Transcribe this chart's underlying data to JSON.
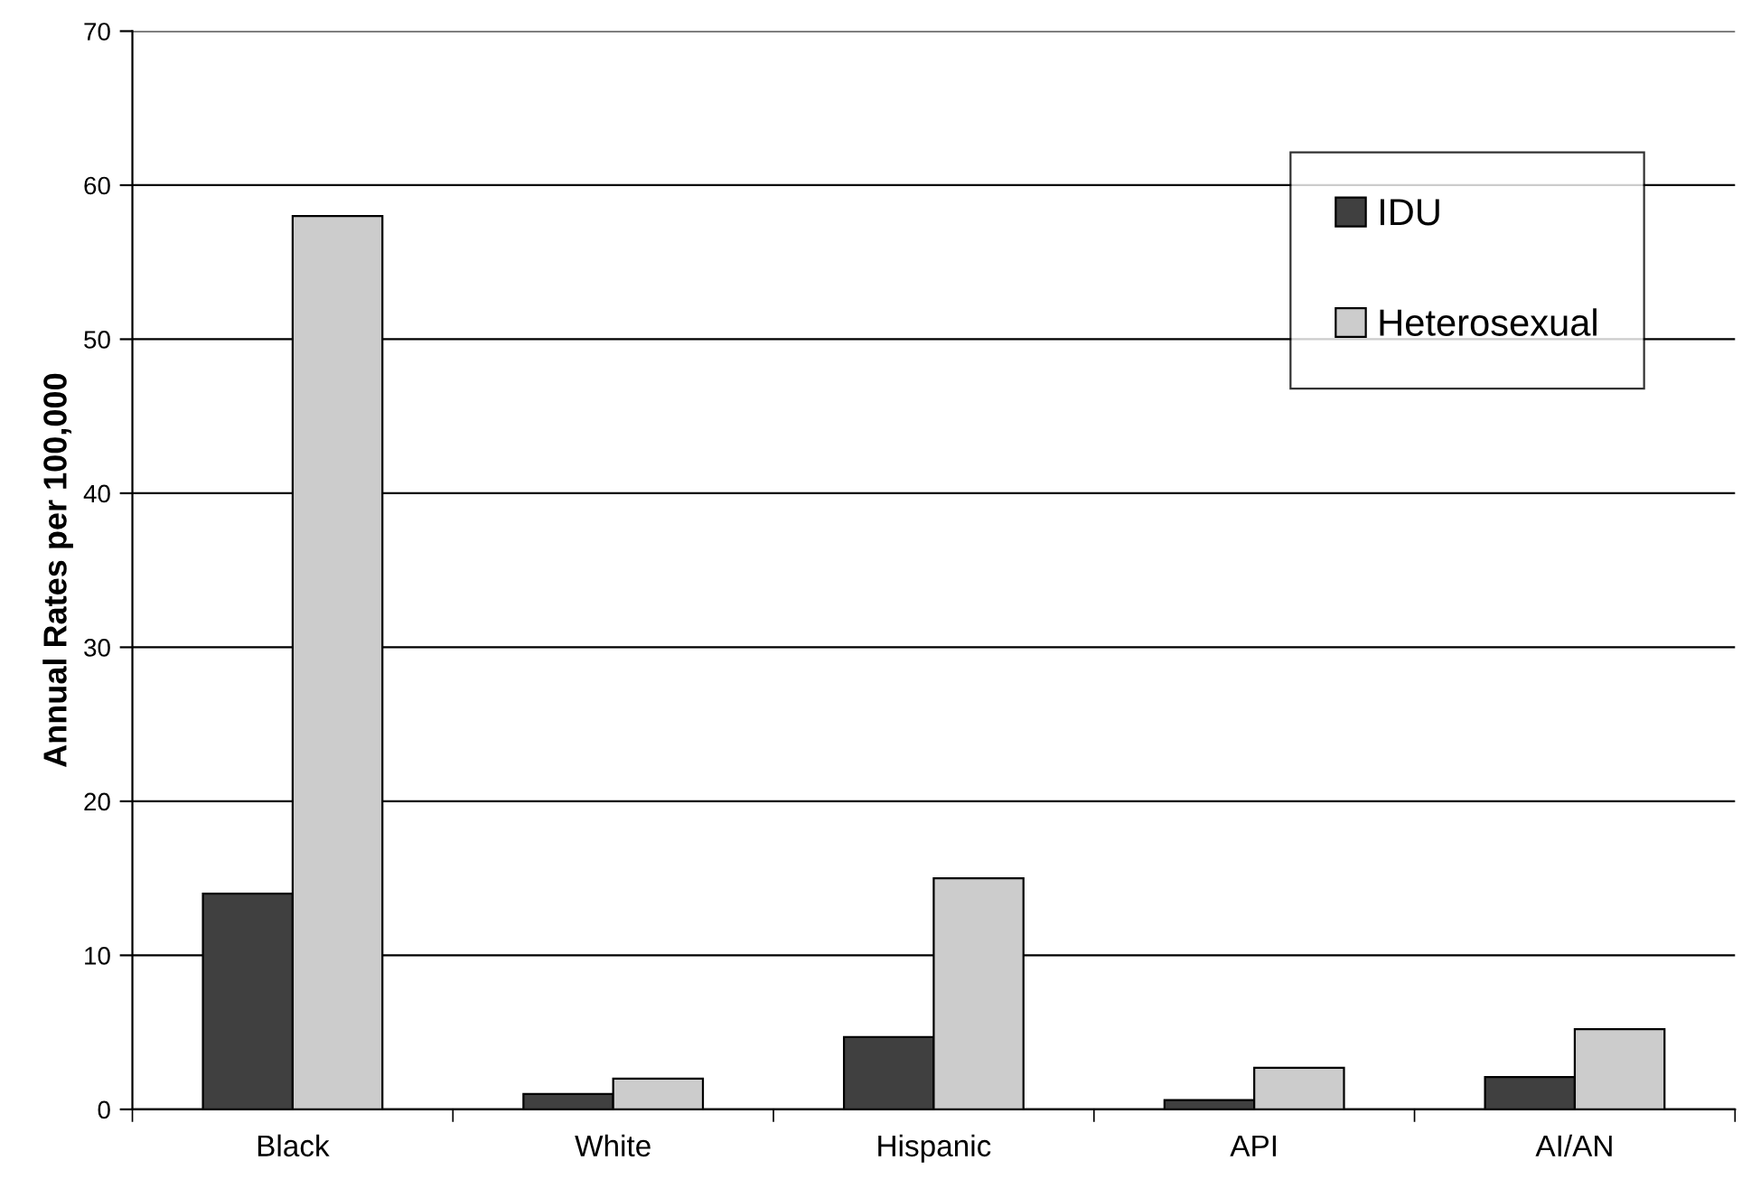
{
  "chart_data": {
    "type": "bar",
    "ylabel": "Annual Rates per 100,000",
    "categories": [
      "Black",
      "White",
      "Hispanic",
      "API",
      "AI/AN"
    ],
    "series": [
      {
        "name": "IDU",
        "color": "#404040",
        "values": [
          14.0,
          1.0,
          4.7,
          0.6,
          2.1
        ]
      },
      {
        "name": "Heterosexual",
        "color": "#cccccc",
        "values": [
          58.0,
          2.0,
          15.0,
          2.7,
          5.2
        ]
      }
    ],
    "ylim": [
      0,
      70
    ],
    "yticks": [
      0,
      10,
      20,
      30,
      40,
      50,
      60,
      70
    ],
    "grid": "y",
    "legend": "top right"
  }
}
